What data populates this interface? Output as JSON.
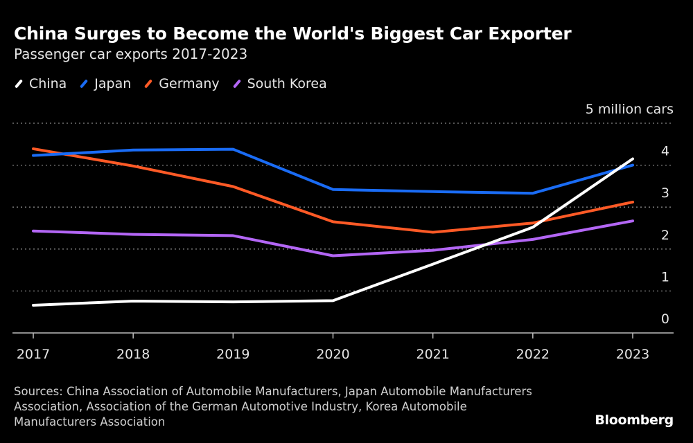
{
  "chart_data": {
    "type": "line",
    "title": "China Surges to Become the World's Biggest Car Exporter",
    "subtitle": "Passenger car exports 2017-2023",
    "x": [
      "2017",
      "2018",
      "2019",
      "2020",
      "2021",
      "2022",
      "2023"
    ],
    "ylim": [
      0,
      5
    ],
    "yticks": [
      "0",
      "1",
      "2",
      "3",
      "4"
    ],
    "ytop_label": "5 million cars",
    "grid": true,
    "legend_position": "top-left",
    "series": [
      {
        "name": "China",
        "color": "#ffffff",
        "values": [
          0.66,
          0.76,
          0.74,
          0.77,
          1.64,
          2.52,
          4.15
        ]
      },
      {
        "name": "Japan",
        "color": "#1a6cf5",
        "values": [
          4.23,
          4.36,
          4.38,
          3.42,
          3.37,
          3.33,
          4.0
        ]
      },
      {
        "name": "Germany",
        "color": "#ff5a26",
        "values": [
          4.39,
          3.98,
          3.49,
          2.65,
          2.4,
          2.62,
          3.12
        ]
      },
      {
        "name": "South Korea",
        "color": "#b366f5",
        "values": [
          2.43,
          2.35,
          2.32,
          1.84,
          1.97,
          2.23,
          2.67
        ]
      }
    ]
  },
  "source": "Sources: China Association of Automobile Manufacturers, Japan Automobile Manufacturers Association, Association of the German Automotive Industry, Korea Automobile Manufacturers Association",
  "logo": "Bloomberg"
}
